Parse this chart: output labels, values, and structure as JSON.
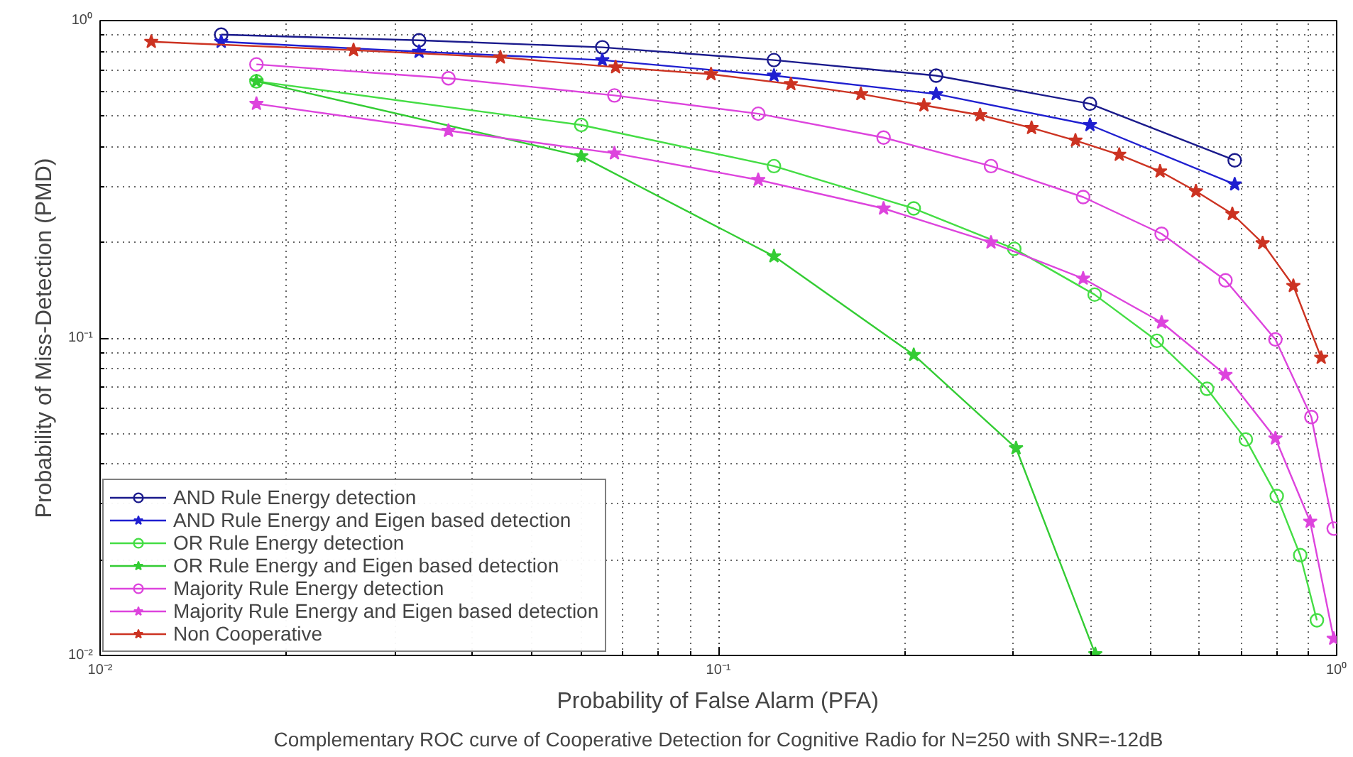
{
  "chart_data": {
    "type": "line",
    "xlabel": "Probability of False Alarm (PFA)",
    "ylabel": "Probability of Miss-Detection (PMD)",
    "annotations": [
      "Complementary ROC curve of Cooperative Detection for Cognitive Radio for N=250 with SNR=-12dB"
    ],
    "log": "xy",
    "grid": true,
    "legend": "bottom left",
    "line_style": "solid",
    "xlim": [
      0.01,
      1
    ],
    "ylim": [
      0.01,
      1
    ],
    "xticks": [
      {
        "value": 0.01,
        "label": "10⁻²"
      },
      {
        "value": 0.1,
        "label": "10⁻¹"
      },
      {
        "value": 1,
        "label": "10⁰"
      }
    ],
    "yticks": [
      {
        "value": 0.01,
        "label": "10⁻²"
      },
      {
        "value": 0.1,
        "label": "10⁻¹"
      },
      {
        "value": 1,
        "label": "10⁰"
      }
    ],
    "series": [
      {
        "name": "AND Rule Energy detection",
        "color": "#1a1a8c",
        "marker": "circle",
        "x": [
          0.0157,
          0.0328,
          0.0649,
          0.123,
          0.225,
          0.399,
          0.684
        ],
        "values": [
          0.903,
          0.867,
          0.824,
          0.751,
          0.671,
          0.547,
          0.363
        ]
      },
      {
        "name": "AND Rule Energy and Eigen based detection",
        "color": "#1f1fd0",
        "marker": "star",
        "x": [
          0.0157,
          0.0328,
          0.0649,
          0.123,
          0.225,
          0.399,
          0.684
        ],
        "values": [
          0.858,
          0.798,
          0.751,
          0.671,
          0.587,
          0.469,
          0.305
        ]
      },
      {
        "name": "OR Rule Energy detection",
        "color": "#44dd44",
        "marker": "circle",
        "x": [
          0.0179,
          0.06,
          0.123,
          0.207,
          0.301,
          0.406,
          0.512,
          0.617,
          0.713,
          0.8,
          0.873,
          0.929
        ],
        "values": [
          0.644,
          0.469,
          0.348,
          0.256,
          0.191,
          0.137,
          0.098,
          0.0692,
          0.0479,
          0.0318,
          0.0207,
          0.0129
        ]
      },
      {
        "name": "OR Rule Energy and Eigen based detection",
        "color": "#33cc33",
        "marker": "star",
        "x": [
          0.0179,
          0.06,
          0.123,
          0.207,
          0.303,
          0.407
        ],
        "values": [
          0.644,
          0.374,
          0.181,
          0.0885,
          0.045,
          0.0101
        ]
      },
      {
        "name": "Majority Rule Energy detection",
        "color": "#dd44dd",
        "marker": "circle",
        "x": [
          0.0179,
          0.0366,
          0.0679,
          0.116,
          0.185,
          0.276,
          0.389,
          0.521,
          0.661,
          0.796,
          0.91,
          0.989
        ],
        "values": [
          0.728,
          0.658,
          0.581,
          0.509,
          0.428,
          0.348,
          0.278,
          0.213,
          0.152,
          0.099,
          0.0564,
          0.0251
        ]
      },
      {
        "name": "Majority Rule Energy and Eigen based detection",
        "color": "#dd44dd",
        "marker": "star",
        "x": [
          0.0179,
          0.0366,
          0.0679,
          0.116,
          0.185,
          0.276,
          0.389,
          0.521,
          0.661,
          0.796,
          0.906,
          0.989
        ],
        "values": [
          0.547,
          0.45,
          0.382,
          0.315,
          0.256,
          0.2,
          0.154,
          0.112,
          0.0766,
          0.0483,
          0.0264,
          0.0113
        ]
      },
      {
        "name": "Non Cooperative",
        "color": "#cc3322",
        "marker": "star",
        "x": [
          0.0121,
          0.0257,
          0.0444,
          0.0682,
          0.0973,
          0.131,
          0.17,
          0.215,
          0.265,
          0.321,
          0.378,
          0.445,
          0.518,
          0.592,
          0.678,
          0.759,
          0.851,
          0.944
        ],
        "values": [
          0.858,
          0.807,
          0.766,
          0.713,
          0.678,
          0.631,
          0.587,
          0.541,
          0.504,
          0.459,
          0.419,
          0.378,
          0.335,
          0.29,
          0.246,
          0.199,
          0.146,
          0.0867
        ]
      }
    ]
  }
}
